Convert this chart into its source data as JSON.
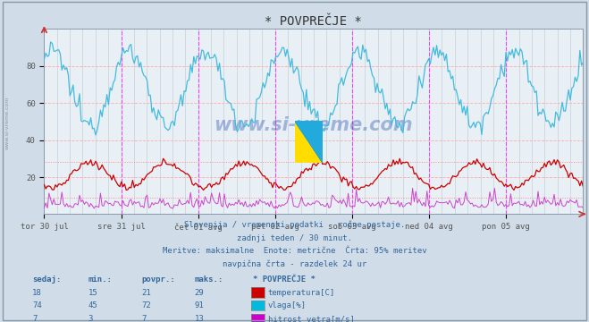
{
  "title": "* POVPREČJE *",
  "bg_color": "#d0dde8",
  "plot_bg_color": "#e8eff5",
  "ylim": [
    0,
    100
  ],
  "yticks": [
    20,
    40,
    60,
    80
  ],
  "xlabel_dates": [
    "tor 30 jul",
    "sre 31 jul",
    "čet 01 avg",
    "pet 02 avg",
    "sob 03 avg",
    "ned 04 avg",
    "pon 05 avg"
  ],
  "subtitle_lines": [
    "Slovenija / vremenski podatki - ročne postaje.",
    "zadnji teden / 30 minut.",
    "Meritve: maksimalne  Enote: metrične  Črta: 95% meritev",
    "navpična črta - razdelek 24 ur"
  ],
  "table_header": [
    "sedaj:",
    "min.:",
    "povpr.:",
    "maks.:",
    "* POVPREČJE *"
  ],
  "table_data": [
    [
      18,
      15,
      21,
      29,
      "temperatura[C]",
      "#cc0000"
    ],
    [
      74,
      45,
      72,
      91,
      "vlaga[%]",
      "#00bbdd"
    ],
    [
      7,
      3,
      7,
      13,
      "hitrost vetra[m/s]",
      "#cc00cc"
    ]
  ],
  "temp_color": "#cc0000",
  "humidity_color": "#44bbdd",
  "wind_color": "#cc44cc",
  "num_points": 336,
  "days": 7
}
